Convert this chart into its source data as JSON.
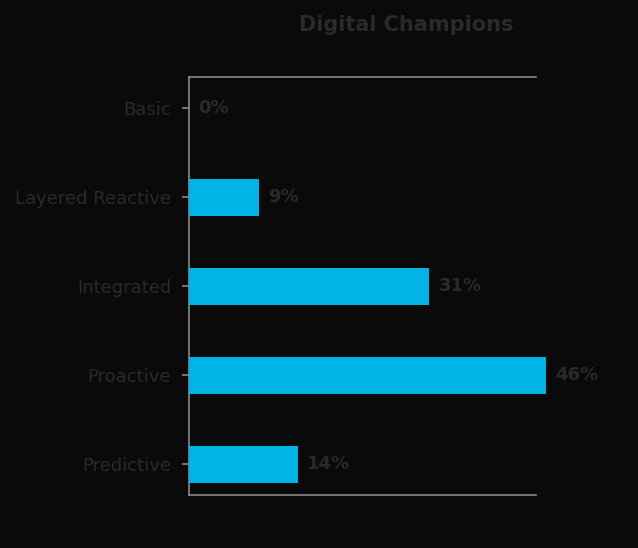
{
  "title": "Digital Champions",
  "categories": [
    "Basic",
    "Layered Reactive",
    "Integrated",
    "Proactive",
    "Predictive"
  ],
  "values": [
    0,
    9,
    31,
    46,
    14
  ],
  "labels": [
    "0%",
    "9%",
    "31%",
    "46%",
    "14%"
  ],
  "bar_color": "#00b4e8",
  "background_color": "#0a0a0a",
  "text_color": "#2a2a2a",
  "spine_color": "#888888",
  "title_fontsize": 15,
  "label_fontsize": 13,
  "value_fontsize": 13,
  "xlabel_fontsize": 14,
  "bar_height": 0.42,
  "xlim_max": 56
}
